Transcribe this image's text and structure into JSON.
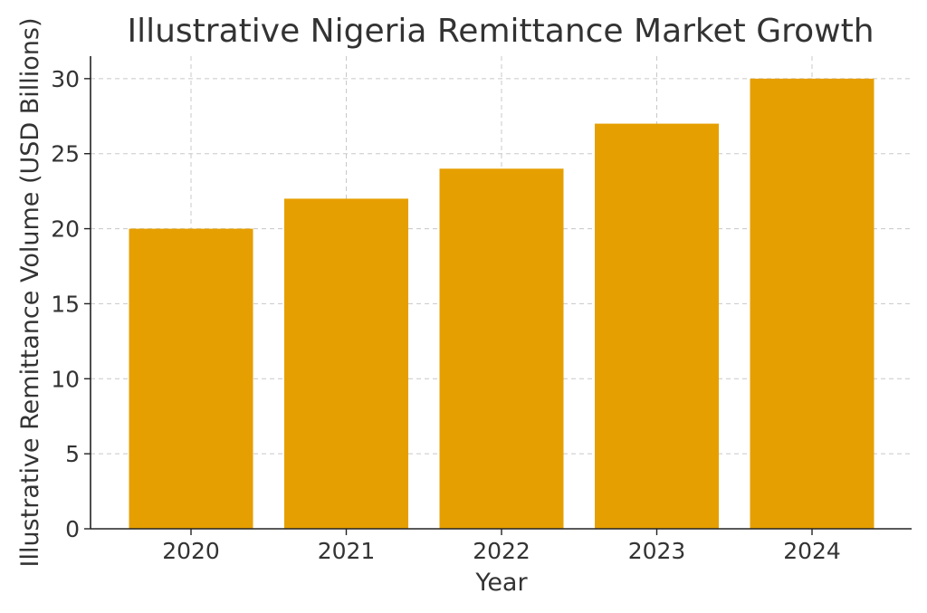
{
  "chart_data": {
    "type": "bar",
    "title": "Illustrative Nigeria Remittance Market Growth",
    "xlabel": "Year",
    "ylabel": "Illustrative Remittance Volume (USD Billions)",
    "categories": [
      "2020",
      "2021",
      "2022",
      "2023",
      "2024"
    ],
    "values": [
      20,
      22,
      24,
      27,
      30
    ],
    "ylim": [
      0,
      31.5
    ],
    "yticks": [
      0,
      5,
      10,
      15,
      20,
      25,
      30
    ],
    "grid": true,
    "bar_color": "#E69F00"
  }
}
